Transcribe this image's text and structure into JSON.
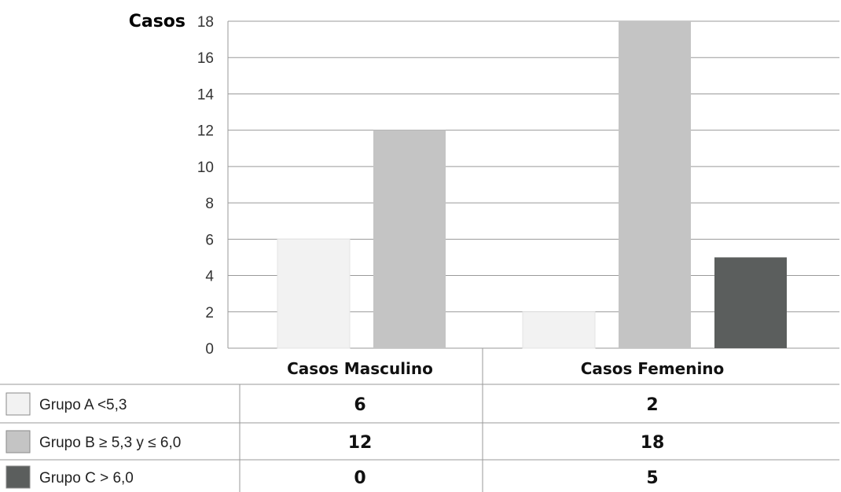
{
  "chart_data": {
    "type": "bar",
    "ylabel": "Casos",
    "ylim": [
      0,
      18
    ],
    "yticks": [
      "0",
      "2",
      "4",
      "6",
      "8",
      "10",
      "12",
      "14",
      "16",
      "18"
    ],
    "categories": [
      "Casos Masculino",
      "Casos Femenino"
    ],
    "series": [
      {
        "name": "Grupo A <5,3",
        "values": [
          6,
          2
        ],
        "color": "#f2f2f2"
      },
      {
        "name": "Grupo B ≥ 5,3 y ≤ 6,0",
        "values": [
          12,
          18
        ],
        "color": "#c4c4c4"
      },
      {
        "name": "Grupo C > 6,0",
        "values": [
          0,
          5
        ],
        "color": "#5b5e5d"
      }
    ],
    "table": {
      "rows": [
        {
          "label": "Grupo A <5,3",
          "cells": [
            "6",
            "2"
          ]
        },
        {
          "label": "Grupo B ≥ 5,3 y ≤ 6,0",
          "cells": [
            "12",
            "18"
          ]
        },
        {
          "label": "Grupo C > 6,0",
          "cells": [
            "0",
            "5"
          ]
        }
      ]
    },
    "grid": true,
    "legend": "table-left"
  }
}
